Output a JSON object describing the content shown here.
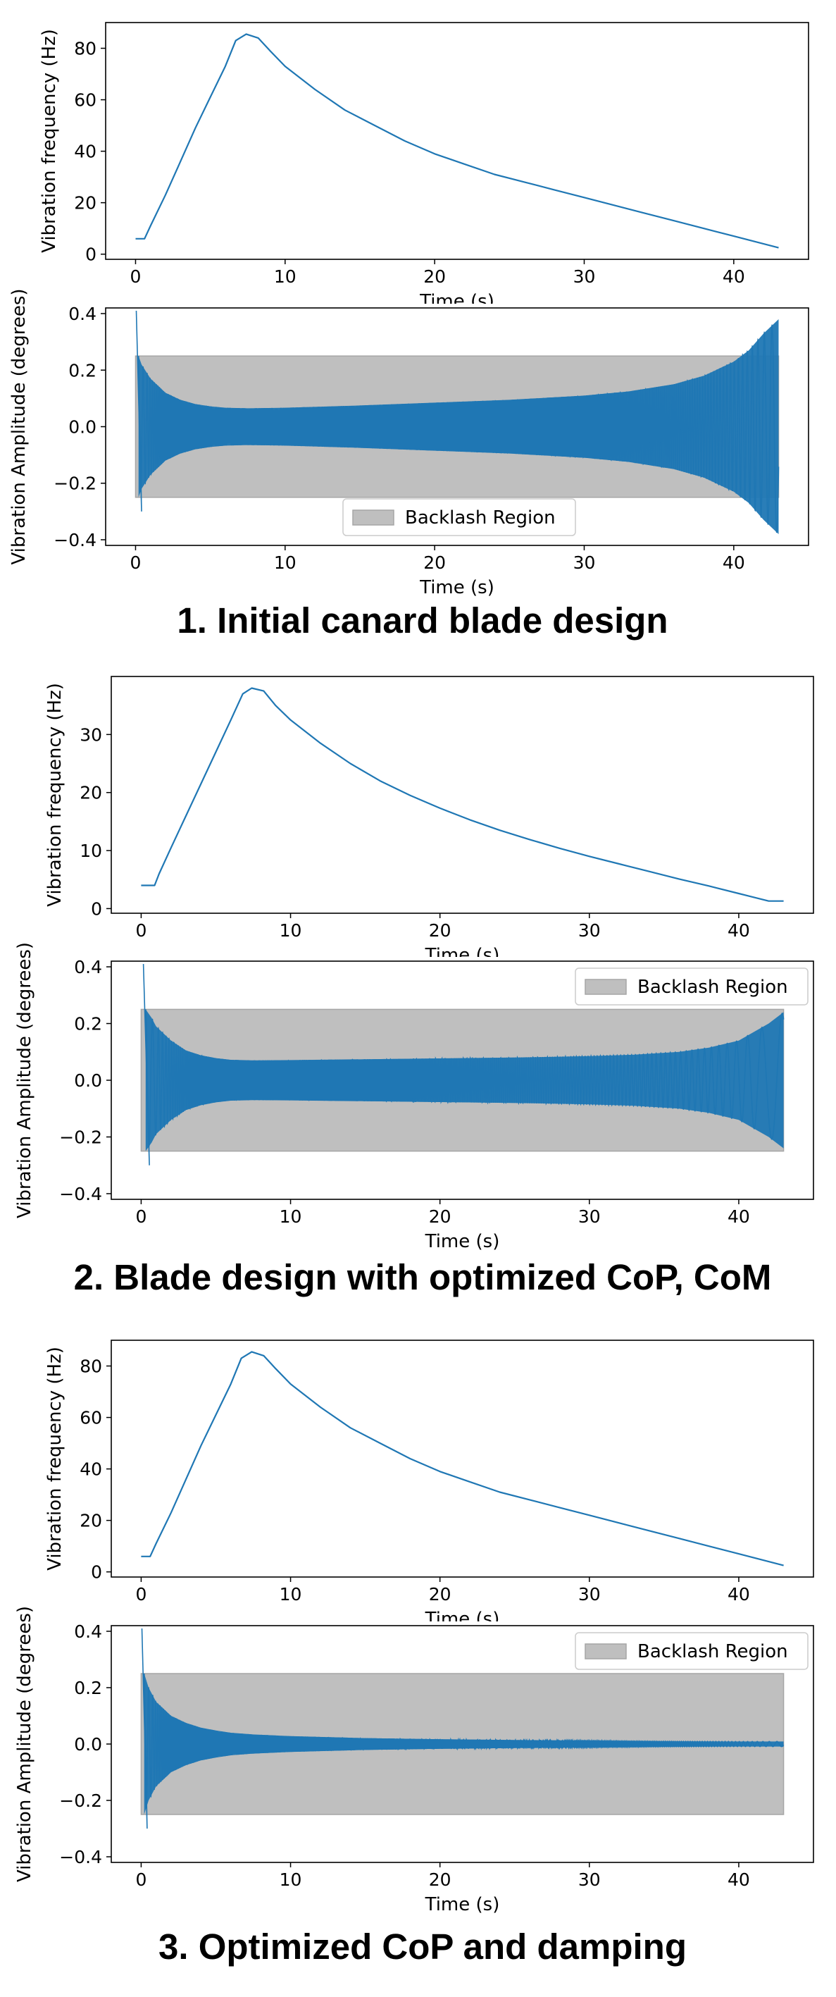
{
  "sections": [
    {
      "title": "1. Initial canard blade design",
      "frequency_plot": {
        "ylabel": "Vibration frequency (Hz)",
        "xlabel": "Time (s)",
        "xlim": [
          -2,
          45
        ],
        "ylim": [
          -2,
          90
        ],
        "xticks": [
          "0",
          "10",
          "20",
          "30",
          "40"
        ],
        "yticks": [
          "0",
          "20",
          "40",
          "60",
          "80"
        ]
      },
      "amplitude_plot": {
        "ylabel": "Vibration Amplitude (degrees)",
        "xlabel": "Time (s)",
        "xlim": [
          -2,
          45
        ],
        "ylim": [
          -0.42,
          0.42
        ],
        "xticks": [
          "0",
          "10",
          "20",
          "30",
          "40"
        ],
        "yticks": [
          "−0.4",
          "−0.2",
          "0.0",
          "0.2",
          "0.4"
        ],
        "legend_label": "Backlash Region",
        "legend_position": "lower-center"
      }
    },
    {
      "title": "2. Blade design with optimized CoP, CoM",
      "frequency_plot": {
        "ylabel": "Vibration frequency (Hz)",
        "xlabel": "Time (s)",
        "xlim": [
          -2,
          45
        ],
        "ylim": [
          -0.8,
          40
        ],
        "xticks": [
          "0",
          "10",
          "20",
          "30",
          "40"
        ],
        "yticks": [
          "0",
          "10",
          "20",
          "30"
        ]
      },
      "amplitude_plot": {
        "ylabel": "Vibration Amplitude (degrees)",
        "xlabel": "Time (s)",
        "xlim": [
          -2,
          45
        ],
        "ylim": [
          -0.42,
          0.42
        ],
        "xticks": [
          "0",
          "10",
          "20",
          "30",
          "40"
        ],
        "yticks": [
          "−0.4",
          "−0.2",
          "0.0",
          "0.2",
          "0.4"
        ],
        "legend_label": "Backlash Region",
        "legend_position": "upper-right"
      }
    },
    {
      "title": "3. Optimized CoP and damping",
      "frequency_plot": {
        "ylabel": "Vibration frequency (Hz)",
        "xlabel": "Time (s)",
        "xlim": [
          -2,
          45
        ],
        "ylim": [
          -2,
          90
        ],
        "xticks": [
          "0",
          "10",
          "20",
          "30",
          "40"
        ],
        "yticks": [
          "0",
          "20",
          "40",
          "60",
          "80"
        ]
      },
      "amplitude_plot": {
        "ylabel": "Vibration Amplitude (degrees)",
        "xlabel": "Time (s)",
        "xlim": [
          -2,
          45
        ],
        "ylim": [
          -0.42,
          0.42
        ],
        "xticks": [
          "0",
          "10",
          "20",
          "30",
          "40"
        ],
        "yticks": [
          "−0.4",
          "−0.2",
          "0.0",
          "0.2",
          "0.4"
        ],
        "legend_label": "Backlash Region",
        "legend_position": "upper-right"
      }
    }
  ],
  "chart_data": [
    {
      "type": "line",
      "xlabel": "Time (s)",
      "ylabel": "Vibration frequency (Hz)",
      "xlim": [
        -2,
        45
      ],
      "ylim": [
        -2,
        90
      ],
      "grid": false,
      "series": [
        {
          "color": "#1f77b4",
          "x": [
            0,
            0.6,
            1,
            2,
            3,
            4,
            5,
            6,
            6.7,
            7.4,
            8.2,
            9,
            10,
            12,
            14,
            16,
            18,
            20,
            22,
            24,
            26,
            28,
            30,
            32,
            34,
            36,
            38,
            40,
            42,
            43
          ],
          "y": [
            6,
            6,
            11,
            23,
            36,
            49,
            61,
            73,
            83,
            85.5,
            84,
            79,
            73,
            64,
            56,
            50,
            44,
            39,
            35,
            31,
            28,
            25,
            22,
            19,
            16,
            13,
            10,
            7,
            4,
            2.5
          ]
        }
      ],
      "backlash_region": null
    },
    {
      "type": "area",
      "xlabel": "Time (s)",
      "ylabel": "Vibration Amplitude (degrees)",
      "xlim": [
        -2,
        45
      ],
      "ylim": [
        -0.42,
        0.42
      ],
      "grid": false,
      "legend": [
        "Backlash Region"
      ],
      "backlash_region": {
        "x": [
          0,
          43
        ],
        "y": [
          -0.25,
          0.25
        ],
        "color": "#bfbfbf"
      },
      "series": [
        {
          "color": "#1f77b4",
          "envelope_x": [
            0.2,
            0.4,
            1,
            2,
            3,
            4,
            5,
            6,
            7.5,
            10,
            15,
            20,
            25,
            30,
            33,
            36,
            38,
            40,
            41,
            42,
            43
          ],
          "envelope_y": [
            0.25,
            0.22,
            0.17,
            0.12,
            0.095,
            0.08,
            0.072,
            0.067,
            0.065,
            0.067,
            0.075,
            0.085,
            0.095,
            0.11,
            0.125,
            0.15,
            0.18,
            0.23,
            0.27,
            0.33,
            0.38
          ],
          "initial_spike": {
            "x": [
              0.05,
              0.4
            ],
            "y": [
              0.41,
              -0.3
            ]
          }
        }
      ]
    },
    {
      "type": "line",
      "xlabel": "Time (s)",
      "ylabel": "Vibration frequency (Hz)",
      "xlim": [
        -2,
        45
      ],
      "ylim": [
        -0.8,
        40
      ],
      "grid": false,
      "series": [
        {
          "color": "#1f77b4",
          "x": [
            0,
            0.9,
            1.2,
            2,
            3,
            4,
            5,
            6,
            6.8,
            7.4,
            8.2,
            9,
            10,
            12,
            14,
            16,
            18,
            20,
            22,
            24,
            26,
            28,
            30,
            32,
            34,
            36,
            38,
            40,
            42,
            43
          ],
          "y": [
            4,
            4,
            6,
            10.5,
            16,
            21.5,
            27,
            32.5,
            37,
            38,
            37.5,
            35,
            32.5,
            28.5,
            25,
            22,
            19.5,
            17.3,
            15.3,
            13.5,
            11.9,
            10.4,
            9,
            7.7,
            6.4,
            5.1,
            3.9,
            2.6,
            1.3,
            1.3
          ]
        }
      ],
      "backlash_region": null
    },
    {
      "type": "area",
      "xlabel": "Time (s)",
      "ylabel": "Vibration Amplitude (degrees)",
      "xlim": [
        -2,
        45
      ],
      "ylim": [
        -0.42,
        0.42
      ],
      "grid": false,
      "legend": [
        "Backlash Region"
      ],
      "backlash_region": {
        "x": [
          0,
          43
        ],
        "y": [
          -0.25,
          0.25
        ],
        "color": "#bfbfbf"
      },
      "series": [
        {
          "color": "#1f77b4",
          "envelope_x": [
            0.3,
            0.7,
            1,
            2,
            3,
            4,
            5,
            6,
            7.5,
            10,
            15,
            20,
            25,
            30,
            33,
            36,
            38,
            40,
            41,
            42,
            43
          ],
          "envelope_y": [
            0.25,
            0.22,
            0.19,
            0.14,
            0.105,
            0.088,
            0.078,
            0.072,
            0.07,
            0.071,
            0.074,
            0.077,
            0.08,
            0.085,
            0.09,
            0.1,
            0.115,
            0.14,
            0.17,
            0.2,
            0.24
          ],
          "initial_spike": {
            "x": [
              0.15,
              0.55
            ],
            "y": [
              0.41,
              -0.3
            ]
          }
        }
      ]
    },
    {
      "type": "line",
      "xlabel": "Time (s)",
      "ylabel": "Vibration frequency (Hz)",
      "xlim": [
        -2,
        45
      ],
      "ylim": [
        -2,
        90
      ],
      "grid": false,
      "series": [
        {
          "color": "#1f77b4",
          "x": [
            0,
            0.6,
            1,
            2,
            3,
            4,
            5,
            6,
            6.7,
            7.4,
            8.2,
            9,
            10,
            12,
            14,
            16,
            18,
            20,
            22,
            24,
            26,
            28,
            30,
            32,
            34,
            36,
            38,
            40,
            42,
            43
          ],
          "y": [
            6,
            6,
            11,
            23,
            36,
            49,
            61,
            73,
            83,
            85.5,
            84,
            79,
            73,
            64,
            56,
            50,
            44,
            39,
            35,
            31,
            28,
            25,
            22,
            19,
            16,
            13,
            10,
            7,
            4,
            2.5
          ]
        }
      ],
      "backlash_region": null
    },
    {
      "type": "area",
      "xlabel": "Time (s)",
      "ylabel": "Vibration Amplitude (degrees)",
      "xlim": [
        -2,
        45
      ],
      "ylim": [
        -0.42,
        0.42
      ],
      "grid": false,
      "legend": [
        "Backlash Region"
      ],
      "backlash_region": {
        "x": [
          0,
          43
        ],
        "y": [
          -0.25,
          0.25
        ],
        "color": "#bfbfbf"
      },
      "series": [
        {
          "color": "#1f77b4",
          "envelope_x": [
            0.2,
            0.5,
            1,
            2,
            3,
            4,
            5,
            6,
            7.5,
            10,
            15,
            20,
            25,
            30,
            35,
            40,
            42,
            43
          ],
          "envelope_y": [
            0.25,
            0.2,
            0.15,
            0.1,
            0.075,
            0.058,
            0.048,
            0.04,
            0.034,
            0.028,
            0.021,
            0.017,
            0.014,
            0.012,
            0.01,
            0.009,
            0.009,
            0.009
          ],
          "initial_spike": {
            "x": [
              0.05,
              0.4
            ],
            "y": [
              0.41,
              -0.3
            ]
          }
        }
      ]
    }
  ]
}
